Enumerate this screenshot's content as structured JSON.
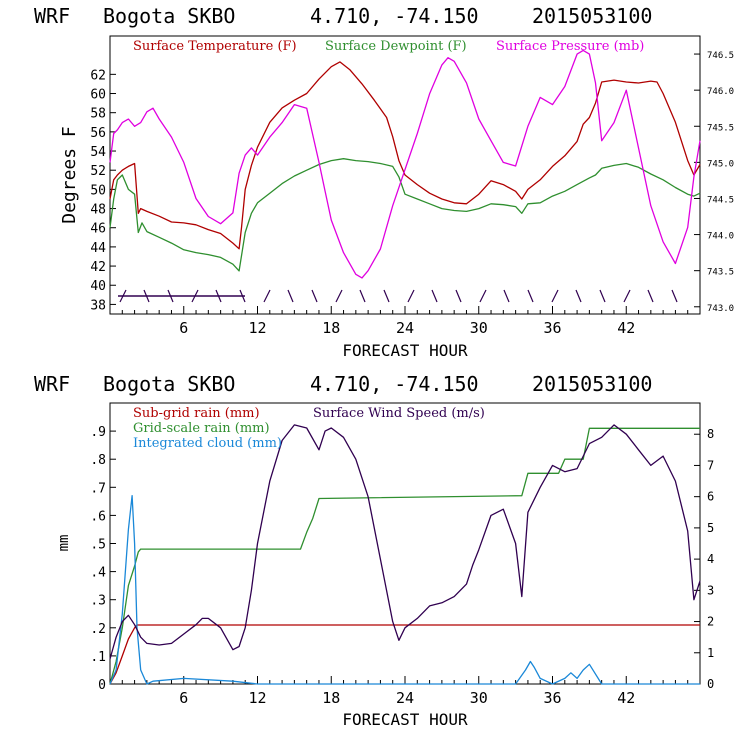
{
  "charts": {
    "top": {
      "header": {
        "model": "WRF",
        "station": "Bogota SKBO",
        "coords": "4.710, -74.150",
        "date": "2015053100"
      }
    },
    "bottom": {
      "header": {
        "model": "WRF",
        "station": "Bogota SKBO",
        "coords": "4.710, -74.150",
        "date": "2015053100"
      }
    }
  },
  "chart_data": [
    {
      "type": "line",
      "title": "WRF Bogota SKBO 4.710, -74.150 2015053100",
      "xlabel": "FORECAST HOUR",
      "ylabel": "Degrees F",
      "xlim": [
        0,
        48
      ],
      "ylim": [
        37,
        66
      ],
      "y2lim": [
        742.9,
        746.75
      ],
      "xticks": [
        6,
        12,
        18,
        24,
        30,
        36,
        42
      ],
      "yticks": [
        38,
        40,
        42,
        44,
        46,
        48,
        50,
        52,
        54,
        56,
        58,
        60,
        62
      ],
      "y2ticks": [
        743.0,
        743.5,
        744.0,
        744.5,
        745.0,
        745.5,
        746.0,
        746.5
      ],
      "ytick_labels": [
        "38",
        "40",
        "42",
        "44",
        "46",
        "48",
        "50",
        "52",
        "54",
        "56",
        "58",
        "60",
        "62"
      ],
      "y2tick_labels": [
        "743.0",
        "743.5",
        "744.0",
        "744.5",
        "745.0",
        "745.5",
        "746.0",
        "746.5"
      ],
      "xtick_labels": [
        "6",
        "12",
        "18",
        "24",
        "30",
        "36",
        "42"
      ],
      "legend": [
        "Surface Temperature (F)",
        "Surface Dewpoint (F)",
        "Surface Pressure (mb)"
      ],
      "series": [
        {
          "name": "Surface Temperature (F)",
          "axis": "left",
          "color": "#b00000",
          "x": [
            0,
            0.3,
            0.6,
            1,
            1.5,
            2,
            2.3,
            2.5,
            3,
            4,
            5,
            6,
            7,
            8,
            9,
            10,
            10.5,
            10.7,
            11,
            11.5,
            12,
            13,
            14,
            15,
            16,
            17,
            18,
            18.7,
            19.5,
            20.5,
            21.5,
            22.5,
            23,
            23.5,
            24,
            25,
            26,
            27,
            28,
            29,
            30,
            31,
            32,
            33,
            33.5,
            34,
            35,
            36,
            37,
            38,
            38.5,
            39,
            39.5,
            40,
            41,
            42,
            43,
            44,
            44.5,
            45,
            46,
            47,
            47.5,
            48
          ],
          "values": [
            49,
            51,
            51.5,
            52,
            52.4,
            52.7,
            47.5,
            48,
            47.7,
            47.2,
            46.6,
            46.5,
            46.3,
            45.8,
            45.4,
            44.4,
            43.8,
            46,
            50,
            52.5,
            54.4,
            57,
            58.5,
            59.3,
            60,
            61.5,
            62.8,
            63.3,
            62.5,
            61,
            59.3,
            57.5,
            55.5,
            53,
            51.5,
            50.5,
            49.6,
            49,
            48.6,
            48.5,
            49.5,
            50.9,
            50.5,
            49.8,
            49,
            50,
            51,
            52.4,
            53.5,
            55,
            56.8,
            57.5,
            59,
            61.2,
            61.4,
            61.2,
            61.1,
            61.3,
            61.2,
            60,
            57,
            53,
            51.5,
            52.6
          ]
        },
        {
          "name": "Surface Dewpoint (F)",
          "axis": "left",
          "color": "#2f8f2f",
          "x": [
            0,
            0.3,
            0.6,
            1,
            1.5,
            2,
            2.3,
            2.6,
            3,
            4,
            5,
            6,
            7,
            8,
            9,
            10,
            10.5,
            11,
            11.5,
            12,
            13,
            14,
            15,
            16,
            17,
            18,
            19,
            20,
            21,
            22,
            23,
            23.5,
            24,
            25,
            26,
            27,
            28,
            29,
            30,
            31,
            32,
            33,
            33.5,
            34,
            35,
            36,
            37,
            38,
            39,
            39.5,
            40,
            41,
            42,
            43,
            44,
            45,
            46,
            47,
            47.5,
            48
          ],
          "values": [
            46,
            49,
            51,
            51.5,
            50,
            49.5,
            45.5,
            46.5,
            45.6,
            45,
            44.4,
            43.7,
            43.4,
            43.2,
            42.9,
            42.2,
            41.5,
            45.5,
            47.5,
            48.6,
            49.6,
            50.6,
            51.4,
            52,
            52.6,
            53,
            53.2,
            53,
            52.9,
            52.7,
            52.4,
            51.3,
            49.5,
            49,
            48.5,
            48,
            47.8,
            47.7,
            48,
            48.5,
            48.4,
            48.2,
            47.5,
            48.5,
            48.6,
            49.3,
            49.8,
            50.5,
            51.2,
            51.5,
            52.2,
            52.5,
            52.7,
            52.3,
            51.6,
            51,
            50.2,
            49.5,
            49.3,
            49.6
          ]
        },
        {
          "name": "Surface Pressure (mb)",
          "axis": "right",
          "color": "#e000e0",
          "x": [
            0,
            0.3,
            0.6,
            1,
            1.5,
            2,
            2.5,
            3,
            3.5,
            4,
            5,
            6,
            7,
            8,
            9,
            10,
            10.5,
            11,
            11.5,
            12,
            13,
            14,
            15,
            16,
            17,
            17.5,
            18,
            19,
            20,
            20.5,
            21,
            22,
            23,
            24,
            25,
            26,
            27,
            27.5,
            28,
            29,
            30,
            31,
            32,
            33,
            34,
            35,
            36,
            37,
            38,
            38.5,
            39,
            39.5,
            40,
            41,
            42,
            43,
            44,
            45,
            46,
            47,
            47.5,
            48
          ],
          "values": [
            745.0,
            745.4,
            745.45,
            745.55,
            745.6,
            745.5,
            745.55,
            745.7,
            745.75,
            745.6,
            745.35,
            745.0,
            744.5,
            744.25,
            744.15,
            744.3,
            744.85,
            745.1,
            745.2,
            745.1,
            745.35,
            745.55,
            745.8,
            745.75,
            745.0,
            744.6,
            744.2,
            743.75,
            743.45,
            743.4,
            743.5,
            743.8,
            744.4,
            744.9,
            745.4,
            745.95,
            746.35,
            746.45,
            746.4,
            746.1,
            745.6,
            745.3,
            745.0,
            744.95,
            745.5,
            745.9,
            745.8,
            746.05,
            746.5,
            746.55,
            746.5,
            746.1,
            745.3,
            745.55,
            746.0,
            745.2,
            744.4,
            743.9,
            743.6,
            744.1,
            744.8,
            745.3
          ]
        }
      ]
    },
    {
      "type": "line",
      "title": "WRF Bogota SKBO 4.710, -74.150 2015053100",
      "xlabel": "FORECAST HOUR",
      "ylabel": "mm",
      "xlim": [
        0,
        48
      ],
      "ylim": [
        0,
        1.0
      ],
      "y2lim": [
        0,
        9.0
      ],
      "xticks": [
        6,
        12,
        18,
        24,
        30,
        36,
        42
      ],
      "yticks": [
        0,
        0.1,
        0.2,
        0.3,
        0.4,
        0.5,
        0.6,
        0.7,
        0.8,
        0.9
      ],
      "ytick_labels": [
        "0",
        ".1",
        ".2",
        ".3",
        ".4",
        ".5",
        ".6",
        ".7",
        ".8",
        ".9"
      ],
      "y2ticks": [
        0,
        1,
        2,
        3,
        4,
        5,
        6,
        7,
        8
      ],
      "y2tick_labels": [
        "0",
        "1",
        "2",
        "3",
        "4",
        "5",
        "6",
        "7",
        "8"
      ],
      "xtick_labels": [
        "6",
        "12",
        "18",
        "24",
        "30",
        "36",
        "42"
      ],
      "legend": [
        "Sub-grid rain (mm)",
        "Grid-scale rain (mm)",
        "Integrated cloud (mm)",
        "Surface Wind Speed (m/s)"
      ],
      "series": [
        {
          "name": "Sub-grid rain (mm)",
          "axis": "left",
          "color": "#b00000",
          "x": [
            0,
            0.5,
            1,
            1.5,
            2,
            2.2,
            48
          ],
          "values": [
            0,
            0.04,
            0.1,
            0.16,
            0.2,
            0.21,
            0.21
          ]
        },
        {
          "name": "Grid-scale rain (mm)",
          "axis": "left",
          "color": "#2f8f2f",
          "x": [
            0,
            0.5,
            1,
            1.5,
            2,
            2.3,
            2.5,
            15.5,
            16,
            16.5,
            17,
            33.5,
            34,
            36.5,
            37,
            38.5,
            39,
            48
          ],
          "values": [
            0,
            0.08,
            0.2,
            0.35,
            0.42,
            0.47,
            0.48,
            0.48,
            0.54,
            0.59,
            0.66,
            0.67,
            0.75,
            0.75,
            0.8,
            0.8,
            0.91,
            0.91
          ]
        },
        {
          "name": "Integrated cloud (mm)",
          "axis": "left",
          "color": "#1a88d8",
          "x": [
            0,
            0.5,
            1,
            1.5,
            1.8,
            2,
            2.2,
            2.5,
            3,
            3.5,
            6,
            10,
            12,
            20,
            24,
            30,
            33,
            33.8,
            34.2,
            34.5,
            35,
            36,
            37,
            37.5,
            38,
            38.5,
            39,
            40,
            48
          ],
          "values": [
            0,
            0.05,
            0.25,
            0.55,
            0.67,
            0.5,
            0.2,
            0.05,
            0.0,
            0.01,
            0.02,
            0.01,
            0.0,
            0.0,
            0.0,
            0.0,
            0.0,
            0.05,
            0.08,
            0.06,
            0.02,
            0.0,
            0.02,
            0.04,
            0.02,
            0.05,
            0.07,
            0.0,
            0.0
          ]
        },
        {
          "name": "Surface Wind Speed (m/s)",
          "axis": "right",
          "color": "#300050",
          "x": [
            0,
            0.5,
            1,
            1.5,
            2,
            2.5,
            3,
            4,
            5,
            6,
            7,
            7.5,
            8,
            9,
            10,
            10.5,
            11,
            11.5,
            12,
            13,
            14,
            15,
            16,
            17,
            17.5,
            18,
            19,
            20,
            21,
            22,
            23,
            23.5,
            24,
            25,
            26,
            27,
            28,
            29,
            29.5,
            30,
            31,
            32,
            33,
            33.5,
            34,
            35,
            36,
            37,
            38,
            39,
            40,
            41,
            42,
            43,
            44,
            45,
            46,
            47,
            47.5,
            48
          ],
          "values": [
            0.8,
            1.5,
            2.0,
            2.2,
            1.9,
            1.5,
            1.3,
            1.25,
            1.3,
            1.6,
            1.9,
            2.1,
            2.1,
            1.8,
            1.1,
            1.2,
            1.8,
            3.0,
            4.5,
            6.5,
            7.8,
            8.3,
            8.2,
            7.5,
            8.1,
            8.2,
            7.9,
            7.2,
            6.0,
            4.0,
            2.0,
            1.4,
            1.8,
            2.1,
            2.5,
            2.6,
            2.8,
            3.2,
            3.8,
            4.3,
            5.4,
            5.6,
            4.5,
            2.8,
            5.5,
            6.3,
            7.0,
            6.8,
            6.9,
            7.7,
            7.9,
            8.3,
            8.0,
            7.5,
            7.0,
            7.3,
            6.5,
            4.9,
            2.7,
            3.3
          ]
        }
      ]
    }
  ]
}
